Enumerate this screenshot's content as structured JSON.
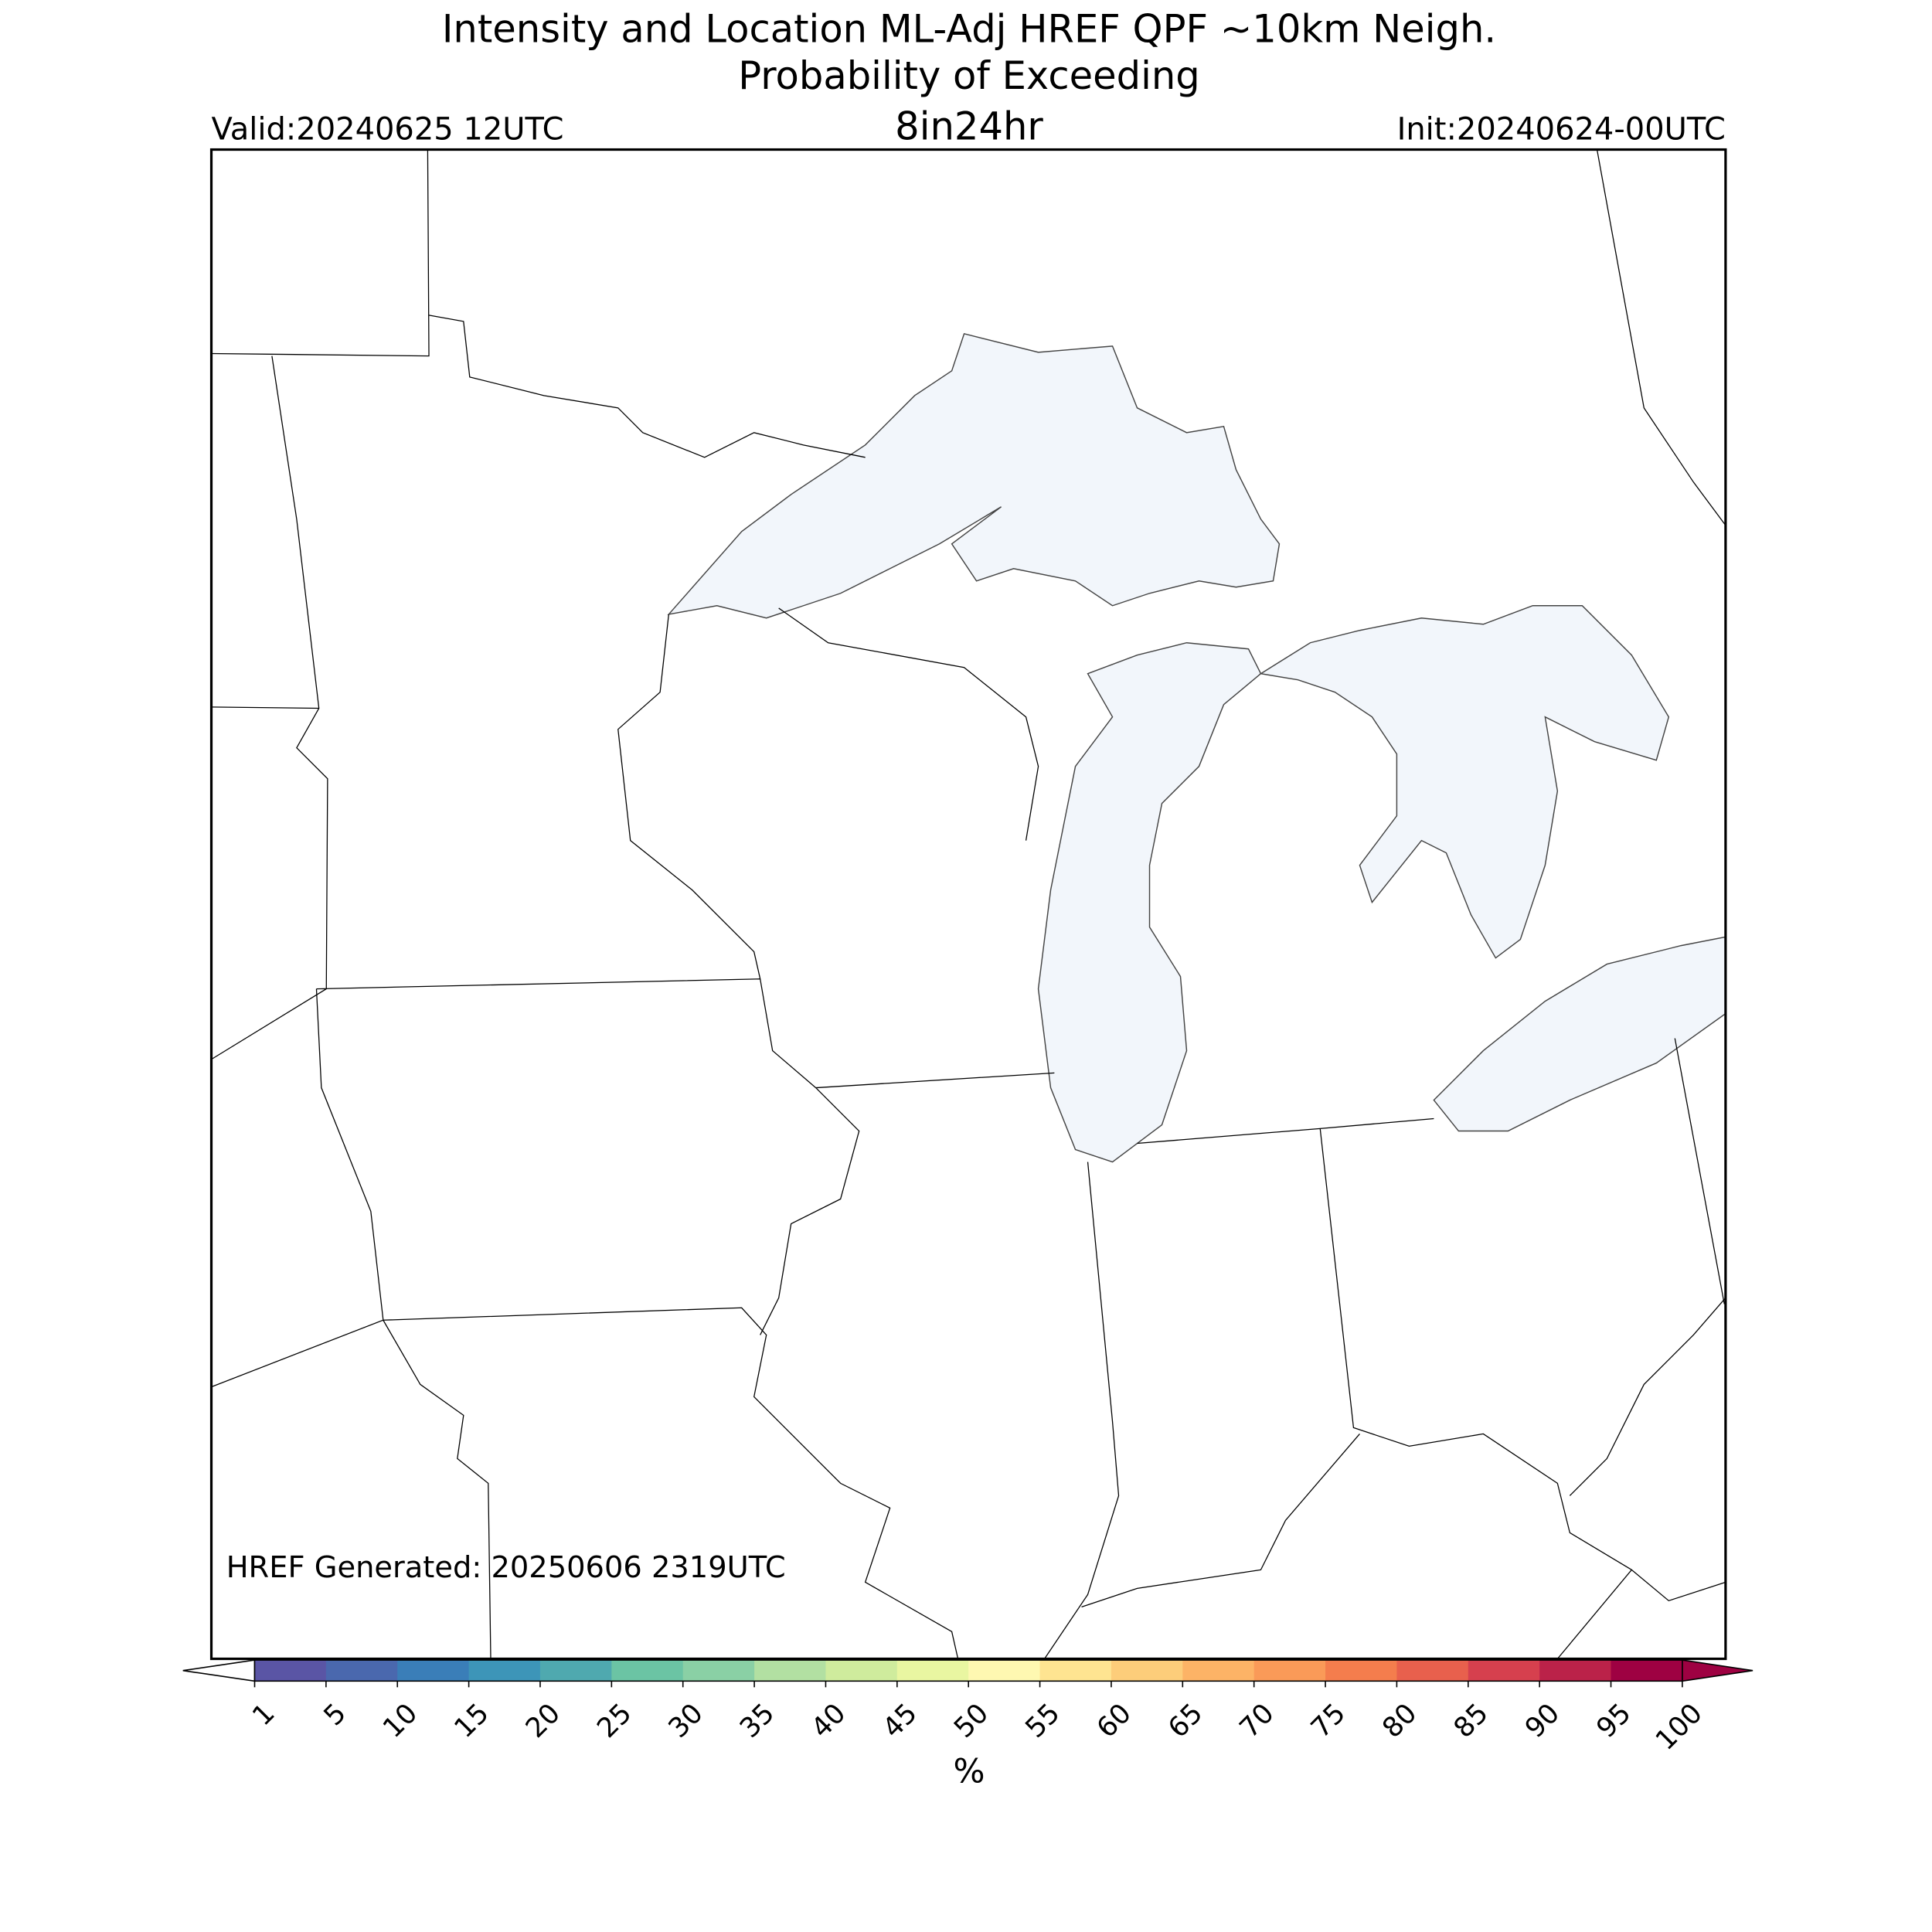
{
  "title": "Intensity and Location ML-Adj HREF QPF ~10km Neigh.",
  "subtitle": "Probability of Exceeding",
  "threshold": "8in24hr",
  "valid": "Valid:20240625 12UTC",
  "init": "Init:20240624-00UTC",
  "footnote": "HREF Generated: 20250606 2319UTC",
  "colorbar": {
    "label": "%",
    "ticks": [
      1,
      5,
      10,
      15,
      20,
      25,
      30,
      35,
      40,
      45,
      50,
      55,
      60,
      65,
      70,
      75,
      80,
      85,
      90,
      95,
      100
    ],
    "colors": [
      "#5a55a5",
      "#4a68ae",
      "#3a7eb8",
      "#3d95b8",
      "#4fa9af",
      "#6bc4a4",
      "#8ad0a5",
      "#b2e0a2",
      "#cfec9d",
      "#e9f6a1",
      "#fef8b1",
      "#fee491",
      "#fdcd7a",
      "#fdb366",
      "#fa9a58",
      "#f47d4d",
      "#e8604d",
      "#d6404e",
      "#bb2249",
      "#9e0142"
    ],
    "under_color": "#ffffff",
    "over_color": "#9e0142"
  }
}
